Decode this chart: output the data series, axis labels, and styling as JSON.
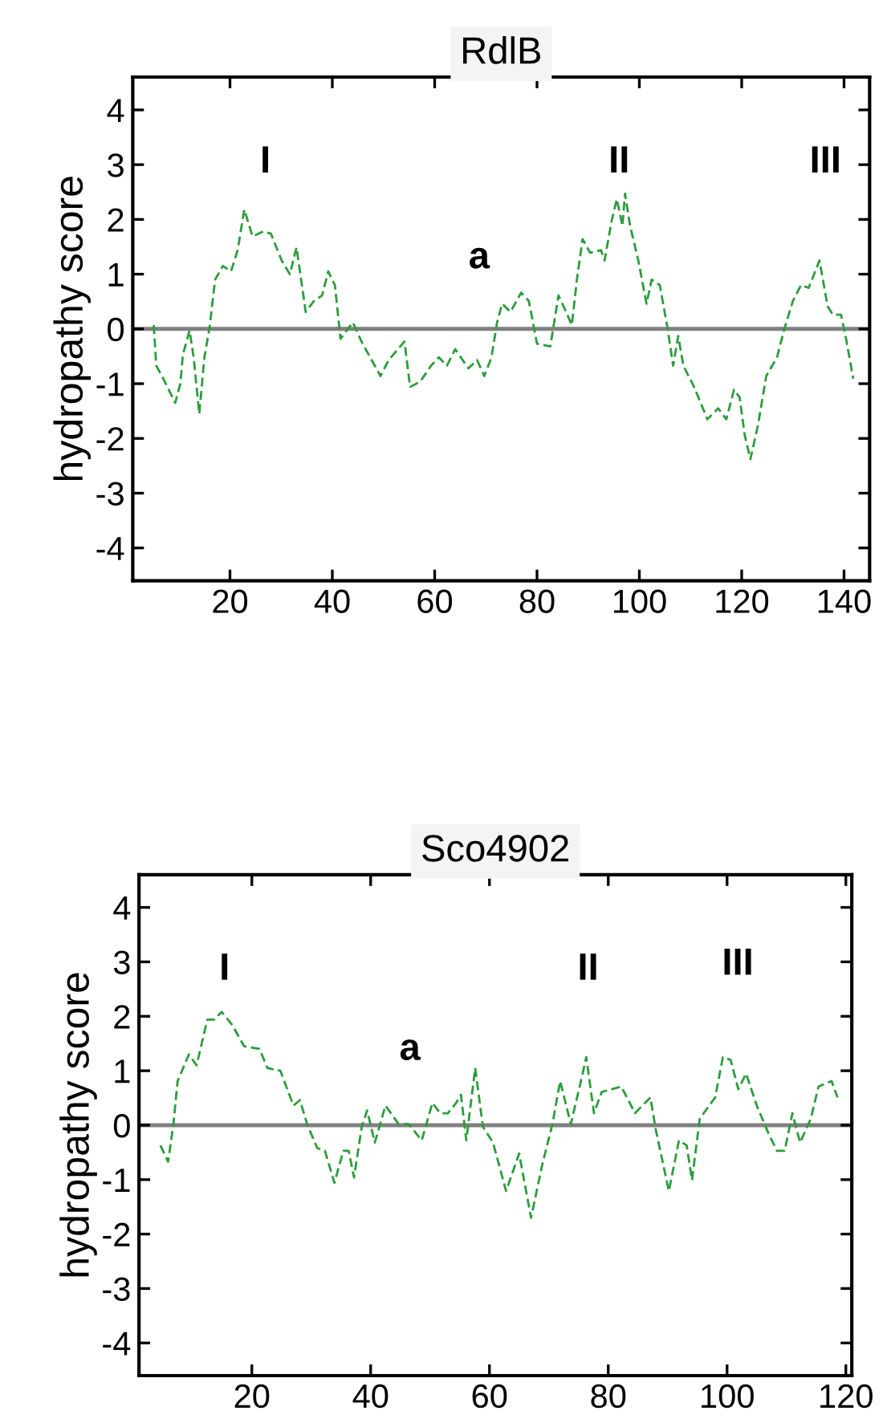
{
  "chart_data": [
    {
      "type": "line",
      "title": "RdlB",
      "ylabel": "hydropathy score",
      "xlim": [
        1,
        145
      ],
      "ylim": [
        -4.6,
        4.6
      ],
      "xticks": [
        20,
        40,
        60,
        80,
        100,
        120,
        140
      ],
      "yticks": [
        -4,
        -3,
        -2,
        -1,
        0,
        1,
        2,
        3,
        4
      ],
      "grid": false,
      "legend": false,
      "marker": "none",
      "line_style": "dashed",
      "ref_lines": [
        {
          "axis": "y",
          "value": 0,
          "color": "#808080",
          "line_style": "solid"
        }
      ],
      "annotations": [
        "I",
        "a",
        "II",
        "III"
      ],
      "series": [
        {
          "color": "#2a9d3a",
          "x": [
            5.1,
            5.6,
            6.7,
            9.3,
            10.3,
            10.8,
            12.1,
            12.9,
            14,
            15,
            16,
            17.1,
            18.6,
            20.2,
            21.5,
            22.8,
            24.4,
            26.5,
            28,
            30.1,
            31.7,
            33,
            34.8,
            36.4,
            38,
            39.2,
            40.5,
            41.6,
            44,
            45.7,
            49.4,
            51,
            54.1,
            55.2,
            57.2,
            59.3,
            60.8,
            62.4,
            64,
            66.6,
            68.3,
            69.7,
            71.1,
            72.2,
            73.2,
            74.8,
            76.9,
            78.4,
            80,
            82.6,
            84.2,
            85.7,
            86.8,
            87.8,
            88.9,
            90.4,
            92.5,
            93.2,
            94.6,
            95.6,
            96.7,
            97.2,
            98.2,
            99.8,
            101.4,
            102.4,
            104,
            105.5,
            106.6,
            107.6,
            108.6,
            110.7,
            113.3,
            115.4,
            117,
            118.5,
            119.6,
            120.6,
            121.7,
            123.2,
            124.8,
            126.9,
            128.4,
            130,
            131.6,
            133.1,
            135.2,
            136.8,
            137.8,
            139.4,
            140.4,
            141.8
          ],
          "values": [
            0.07,
            -0.67,
            -0.86,
            -1.35,
            -1.0,
            -0.47,
            -0.03,
            -0.52,
            -1.55,
            -0.52,
            0.02,
            0.9,
            1.15,
            1.05,
            1.44,
            2.18,
            1.69,
            1.78,
            1.74,
            1.25,
            1.0,
            1.49,
            0.31,
            0.51,
            0.61,
            1.05,
            0.8,
            -0.18,
            0.12,
            -0.23,
            -0.86,
            -0.57,
            -0.23,
            -1.06,
            -0.96,
            -0.67,
            -0.52,
            -0.67,
            -0.37,
            -0.72,
            -0.57,
            -0.86,
            -0.52,
            0.12,
            0.46,
            0.31,
            0.66,
            0.51,
            -0.27,
            -0.32,
            0.61,
            0.31,
            0.07,
            0.9,
            1.64,
            1.39,
            1.44,
            1.25,
            1.98,
            2.37,
            1.88,
            2.47,
            1.88,
            1.25,
            0.46,
            0.9,
            0.8,
            0.02,
            -0.67,
            -0.13,
            -0.67,
            -1.06,
            -1.65,
            -1.45,
            -1.65,
            -1.11,
            -1.25,
            -1.94,
            -2.38,
            -1.75,
            -0.86,
            -0.52,
            0.02,
            0.51,
            0.8,
            0.75,
            1.25,
            0.41,
            0.26,
            0.26,
            -0.18,
            -0.91
          ]
        }
      ]
    },
    {
      "type": "line",
      "title": "Sco4902",
      "ylabel": "hydropathy score",
      "xlim": [
        1,
        121
      ],
      "ylim": [
        -4.6,
        4.6
      ],
      "xticks": [
        20,
        40,
        60,
        80,
        100,
        120
      ],
      "yticks": [
        -4,
        -3,
        -2,
        -1,
        0,
        1,
        2,
        3,
        4
      ],
      "grid": false,
      "legend": false,
      "marker": "none",
      "line_style": "dashed",
      "ref_lines": [
        {
          "axis": "y",
          "value": 0,
          "color": "#808080",
          "line_style": "solid"
        }
      ],
      "annotations": [
        "I",
        "a",
        "II",
        "III"
      ],
      "series": [
        {
          "color": "#2a9d3a",
          "x": [
            4.6,
            5.9,
            6.8,
            7.5,
            9.4,
            10.7,
            12.5,
            13.7,
            14.9,
            16.7,
            18.7,
            21.3,
            22.6,
            24.8,
            27,
            28.1,
            29.3,
            31,
            32.3,
            33.9,
            35.4,
            36.3,
            37.2,
            38.5,
            39.4,
            40.7,
            42.5,
            44.7,
            46.4,
            48.6,
            50.4,
            51.7,
            53,
            54.4,
            55.2,
            56.1,
            57.6,
            58.9,
            60.6,
            62.8,
            65,
            67,
            68.9,
            70.6,
            71.9,
            73.7,
            75.4,
            76.3,
            77.6,
            78.9,
            82.2,
            84.5,
            87.1,
            88,
            90.2,
            91.9,
            93.2,
            94.1,
            95.4,
            98,
            99.3,
            100.6,
            101.9,
            103.2,
            105,
            107.1,
            108.4,
            109.7,
            111,
            112.3,
            114.1,
            115.4,
            117.6,
            118.6
          ],
          "values": [
            -0.37,
            -0.67,
            0.02,
            0.81,
            1.3,
            1.1,
            1.94,
            1.94,
            2.08,
            1.84,
            1.45,
            1.4,
            1.05,
            1.0,
            0.36,
            0.46,
            0.02,
            -0.42,
            -0.47,
            -1.06,
            -0.47,
            -0.47,
            -0.96,
            -0.03,
            0.27,
            -0.32,
            0.36,
            0.02,
            0.02,
            -0.28,
            0.41,
            0.22,
            0.22,
            0.41,
            0.56,
            -0.28,
            1.05,
            -0.03,
            -0.32,
            -1.21,
            -0.52,
            -1.7,
            -0.72,
            0.02,
            0.81,
            0.02,
            0.81,
            1.25,
            0.22,
            0.61,
            0.71,
            0.22,
            0.51,
            -0.08,
            -1.21,
            -0.28,
            -0.37,
            -1.01,
            0.12,
            0.51,
            1.25,
            1.2,
            0.66,
            0.95,
            0.36,
            -0.18,
            -0.47,
            -0.47,
            0.22,
            -0.32,
            0.12,
            0.71,
            0.81,
            0.51
          ]
        }
      ]
    }
  ]
}
